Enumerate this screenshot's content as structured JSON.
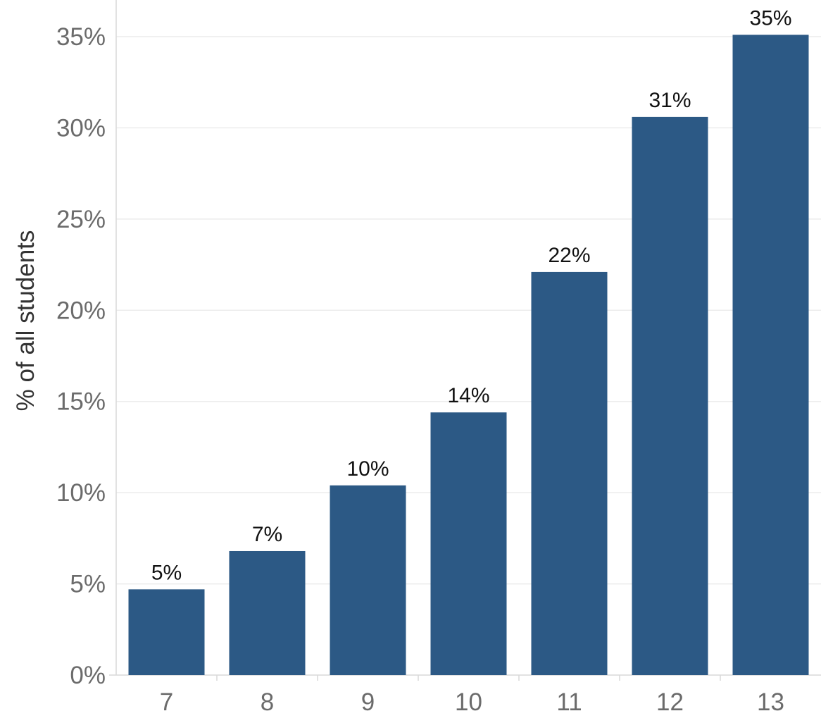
{
  "chart_data": {
    "type": "bar",
    "title": "",
    "xlabel": "",
    "ylabel": "% of all students",
    "categories": [
      "7",
      "8",
      "9",
      "10",
      "11",
      "12",
      "13"
    ],
    "values": [
      4.7,
      6.8,
      10.4,
      14.4,
      22.1,
      30.6,
      35.1
    ],
    "data_labels": [
      "5%",
      "7%",
      "10%",
      "14%",
      "22%",
      "31%",
      "35%"
    ],
    "y_ticks": [
      0,
      5,
      10,
      15,
      20,
      25,
      30,
      35
    ],
    "y_tick_labels": [
      "0%",
      "5%",
      "10%",
      "15%",
      "20%",
      "25%",
      "30%",
      "35%"
    ],
    "ylim": [
      0,
      35
    ],
    "grid": true,
    "legend": "none",
    "bar_color": "#2c5985"
  }
}
